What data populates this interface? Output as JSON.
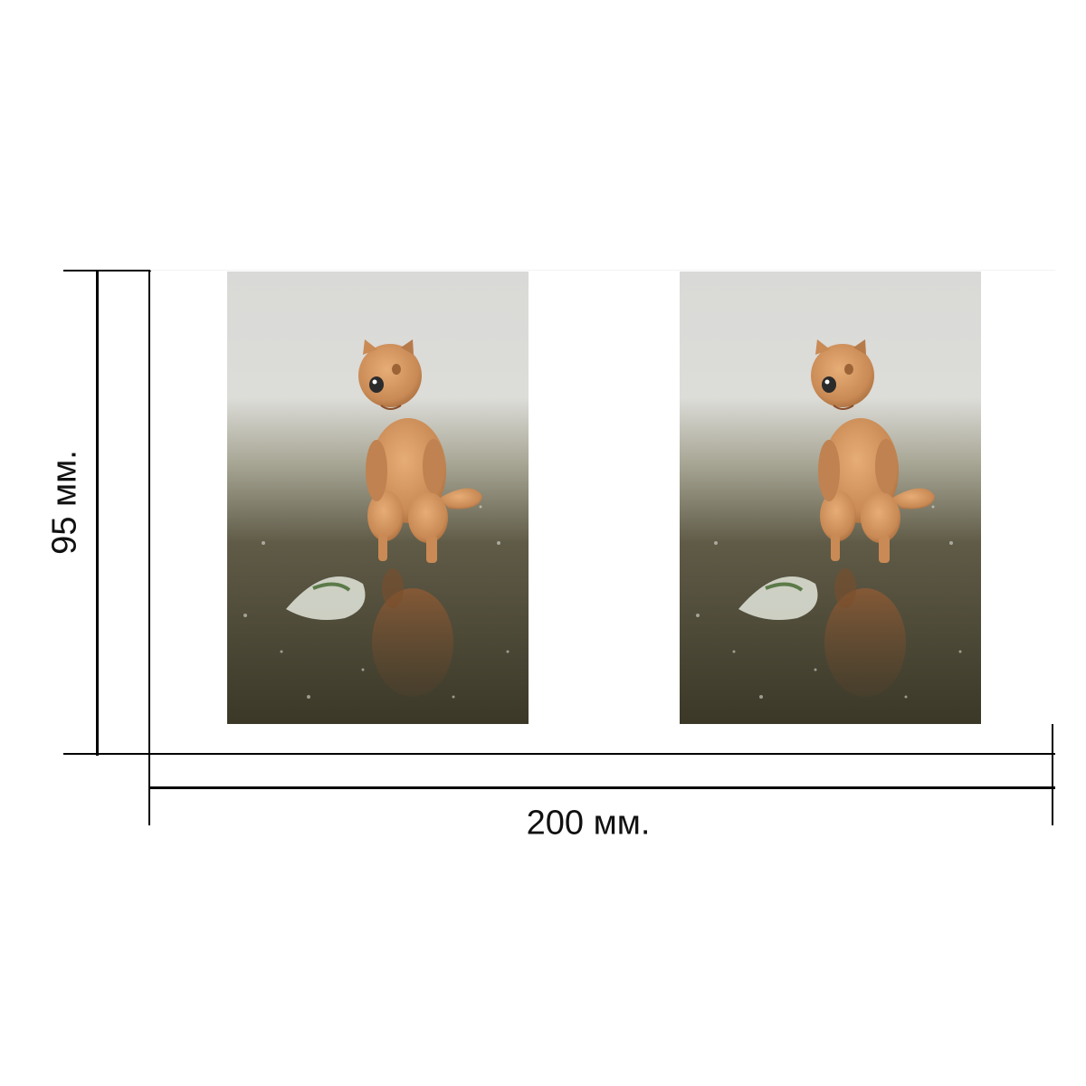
{
  "dimensions": {
    "height_label": "95 мм.",
    "width_label": "200 мм."
  },
  "print": {
    "subject": "toy-cat-figurine-in-puddle",
    "copies": 2,
    "colors": {
      "figure": "#c98a55",
      "ground_dark": "#4a4636",
      "background_light": "#e8e8e6"
    }
  }
}
